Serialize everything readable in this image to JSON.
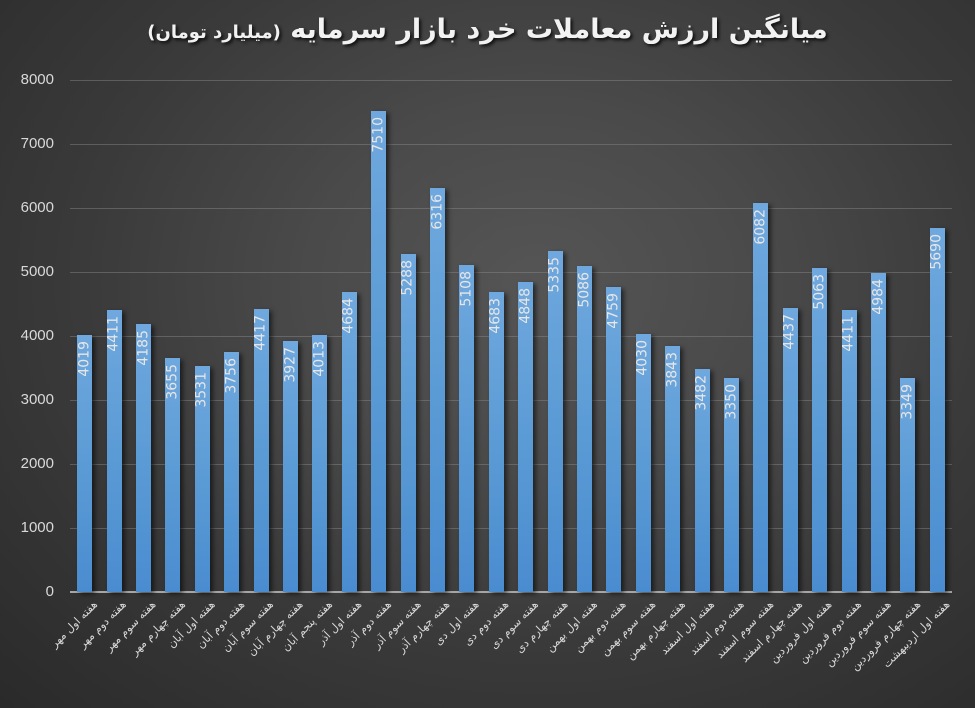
{
  "chart_data": {
    "type": "bar",
    "title": "میانگین ارزش معاملات خرد بازار سرمایه",
    "subtitle": "(میلیارد تومان)",
    "xlabel": "",
    "ylabel": "",
    "ylim": [
      0,
      8000
    ],
    "yticks": [
      0,
      1000,
      2000,
      3000,
      4000,
      5000,
      6000,
      7000,
      8000
    ],
    "grid": true,
    "legend": "none",
    "data_labels": "inside-end, rotated",
    "bar_color": "#5b9bd5",
    "categories": [
      "هفته اول مهر",
      "هفته دوم مهر",
      "هفته سوم مهر",
      "هفته چهارم مهر",
      "هفته اول آبان",
      "هفته دوم آبان",
      "هفته سوم آبان",
      "هفته چهارم آبان",
      "هفته پنجم آبان",
      "هفته اول آذر",
      "هفته دوم آذر",
      "هفته سوم آذر",
      "هفته چهارم آذر",
      "هفته اول دی",
      "هفته دوم دی",
      "هفته سوم دی",
      "هفته چهارم دی",
      "هفته اول بهمن",
      "هفته دوم بهمن",
      "هفته سوم بهمن",
      "هفته چهارم بهمن",
      "هفته اول اسفند",
      "هفته دوم اسفند",
      "هفته سوم اسفند",
      "هفته چهارم اسفند",
      "هفته اول فروردین",
      "هفته دوم فروردین",
      "هفته سوم فروردین",
      "هفته چهارم فروردین",
      "هفته اول اردیبهشت"
    ],
    "values": [
      4019,
      4411,
      4185,
      3655,
      3531,
      3756,
      4417,
      3927,
      4013,
      4684,
      7510,
      5288,
      6316,
      5108,
      4683,
      4848,
      5335,
      5086,
      4759,
      4030,
      3843,
      3482,
      3350,
      6082,
      4437,
      5063,
      4411,
      4984,
      3349,
      5690
    ]
  }
}
